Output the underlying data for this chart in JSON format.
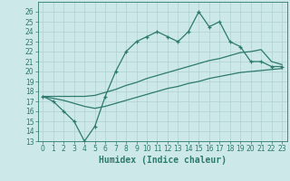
{
  "xlabel": "Humidex (Indice chaleur)",
  "bg_color": "#cce8e8",
  "line_color": "#2d7a6e",
  "grid_color": "#b0d0d0",
  "x": [
    0,
    1,
    2,
    3,
    4,
    5,
    6,
    7,
    8,
    9,
    10,
    11,
    12,
    13,
    14,
    15,
    16,
    17,
    18,
    19,
    20,
    21,
    22,
    23
  ],
  "line1": [
    17.5,
    17.0,
    16.0,
    15.0,
    13.0,
    14.5,
    17.5,
    20.0,
    22.0,
    23.0,
    23.5,
    24.0,
    23.5,
    23.0,
    24.0,
    26.0,
    24.5,
    25.0,
    23.0,
    22.5,
    21.0,
    21.0,
    20.5,
    20.5
  ],
  "line2": [
    17.5,
    17.3,
    17.1,
    16.8,
    16.5,
    16.3,
    16.5,
    16.8,
    17.1,
    17.4,
    17.7,
    18.0,
    18.3,
    18.5,
    18.8,
    19.0,
    19.3,
    19.5,
    19.7,
    19.9,
    20.0,
    20.1,
    20.2,
    20.3
  ],
  "line3": [
    17.5,
    17.5,
    17.5,
    17.5,
    17.5,
    17.6,
    17.9,
    18.2,
    18.6,
    18.9,
    19.3,
    19.6,
    19.9,
    20.2,
    20.5,
    20.8,
    21.1,
    21.3,
    21.6,
    21.9,
    22.0,
    22.2,
    21.0,
    20.7
  ],
  "ylim": [
    13,
    27
  ],
  "xlim": [
    -0.5,
    23.5
  ],
  "yticks": [
    13,
    14,
    15,
    16,
    17,
    18,
    19,
    20,
    21,
    22,
    23,
    24,
    25,
    26
  ],
  "xticks": [
    0,
    1,
    2,
    3,
    4,
    5,
    6,
    7,
    8,
    9,
    10,
    11,
    12,
    13,
    14,
    15,
    16,
    17,
    18,
    19,
    20,
    21,
    22,
    23
  ],
  "tick_fontsize": 5.5,
  "label_fontsize": 7
}
